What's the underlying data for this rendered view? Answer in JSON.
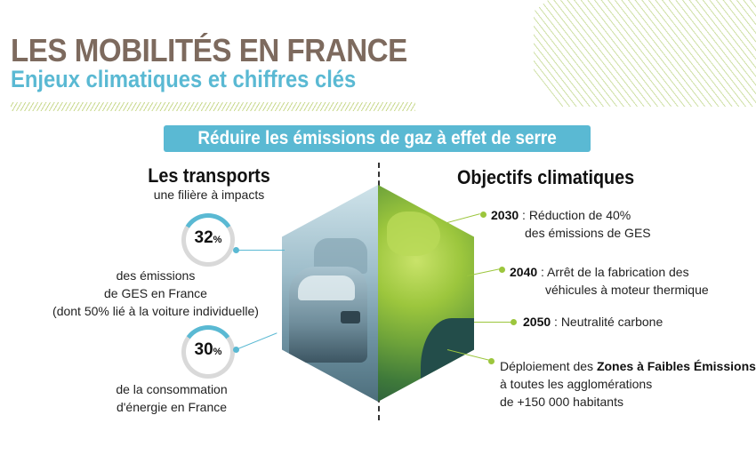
{
  "header": {
    "title": "LES MOBILITÉS EN FRANCE",
    "subtitle": "Enjeux climatiques et chiffres clés",
    "banner": "Réduire les émissions de gaz à effet de serre"
  },
  "left": {
    "heading": "Les transports",
    "subheading": "une filière à impacts",
    "stats": [
      {
        "value": "32",
        "unit": "%",
        "fraction": 0.32,
        "line1": "des émissions",
        "line2": "de GES en France",
        "line3": "(dont 50% lié à la voiture individuelle)"
      },
      {
        "value": "30",
        "unit": "%",
        "fraction": 0.3,
        "line1": "de la consommation",
        "line2": "d'énergie en France"
      }
    ]
  },
  "right": {
    "heading": "Objectifs climatiques",
    "goals": [
      {
        "year": "2030",
        "text1": " : Réduction de 40%",
        "text2": "des émissions de GES"
      },
      {
        "year": "2040",
        "text1": " : Arrêt de la fabrication des",
        "text2": "véhicules à moteur thermique"
      },
      {
        "year": "2050",
        "text1": " : Neutralité carbone"
      },
      {
        "pre": "Déploiement des ",
        "bold": "Zones à Faibles Émissions",
        "text2": "à toutes les agglomérations",
        "text3": "de +150 000 habitants"
      }
    ]
  },
  "colors": {
    "title_brown": "#7d6a5e",
    "accent_blue": "#5ab9d3",
    "accent_green": "#9cc63d"
  }
}
